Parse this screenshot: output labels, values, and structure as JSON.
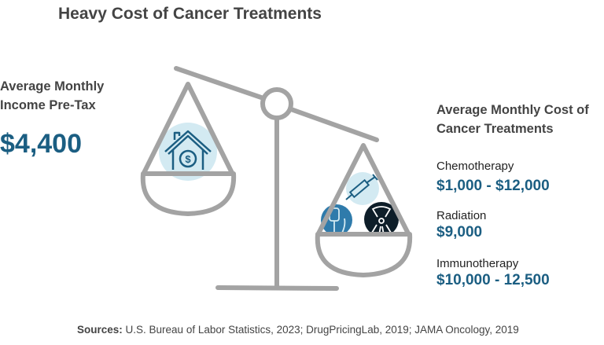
{
  "title": "Heavy Cost of Cancer Treatments",
  "income": {
    "label_line1": "Average Monthly",
    "label_line2": "Income Pre-Tax",
    "value": "$4,400"
  },
  "costs": {
    "label_line1": "Average Monthly Cost of",
    "label_line2": "Cancer Treatments",
    "items": [
      {
        "name": "Chemotherapy",
        "value": "$1,000 - $12,000"
      },
      {
        "name": "Radiation",
        "value": "$9,000"
      },
      {
        "name": "Immunotherapy",
        "value": "$10,000 - 12,500"
      }
    ]
  },
  "sources": {
    "label": "Sources:",
    "text": " U.S. Bureau of Labor Statistics, 2023; DrugPricingLab, 2019; JAMA Oncology, 2019"
  },
  "colors": {
    "accent": "#1b5e82",
    "scale": "#a3a3a3",
    "light_blue": "#d3eaf2",
    "iv_blue": "#2f7bab",
    "radiation_dark": "#0e1e29"
  },
  "icons": [
    "balance-scale-icon",
    "house-dollar-icon",
    "syringe-icon",
    "iv-bag-icon",
    "radiation-icon"
  ]
}
